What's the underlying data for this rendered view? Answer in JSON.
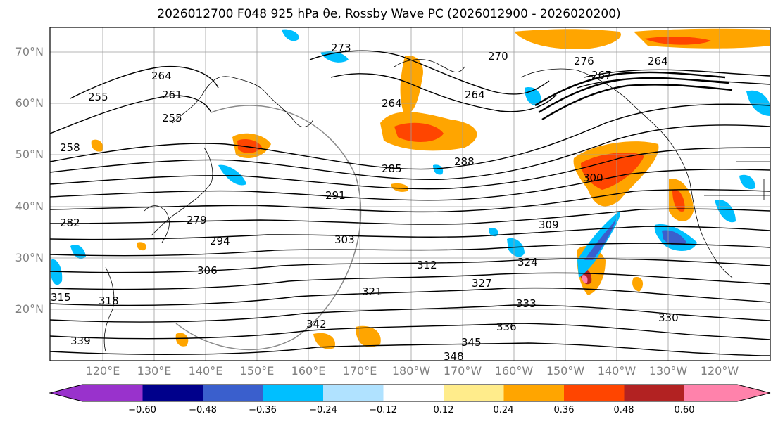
{
  "title": "2026012700 F048 925 hPa θe, Rossby Wave PC (2026012900 - 2026020200)",
  "map": {
    "lat_labels": [
      "70°N",
      "60°N",
      "50°N",
      "40°N",
      "30°N",
      "20°N"
    ],
    "lon_labels": [
      "120°E",
      "130°E",
      "140°E",
      "150°E",
      "160°E",
      "170°E",
      "180°W",
      "170°W",
      "160°W",
      "150°W",
      "140°W",
      "130°W",
      "120°W"
    ],
    "contour_labels": [
      "255",
      "264",
      "264",
      "255",
      "258",
      "261",
      "264",
      "267",
      "270",
      "276",
      "273",
      "264",
      "279",
      "282",
      "285",
      "288",
      "291",
      "294",
      "300",
      "303",
      "306",
      "309",
      "312",
      "315",
      "318",
      "321",
      "324",
      "327",
      "330",
      "333",
      "336",
      "339",
      "342",
      "345",
      "348"
    ]
  },
  "colorbar": {
    "ticks": [
      "−0.60",
      "−0.48",
      "−0.36",
      "−0.24",
      "−0.12",
      "0.12",
      "0.24",
      "0.36",
      "0.48",
      "0.60"
    ],
    "colors": [
      "#9932cc",
      "#00008b",
      "#3a5fcd",
      "#00bfff",
      "#b0e2ff",
      "#ffffff",
      "#ffec8b",
      "#ffa500",
      "#ff4500",
      "#b22222",
      "#ff82ab"
    ],
    "extend": "both"
  }
}
